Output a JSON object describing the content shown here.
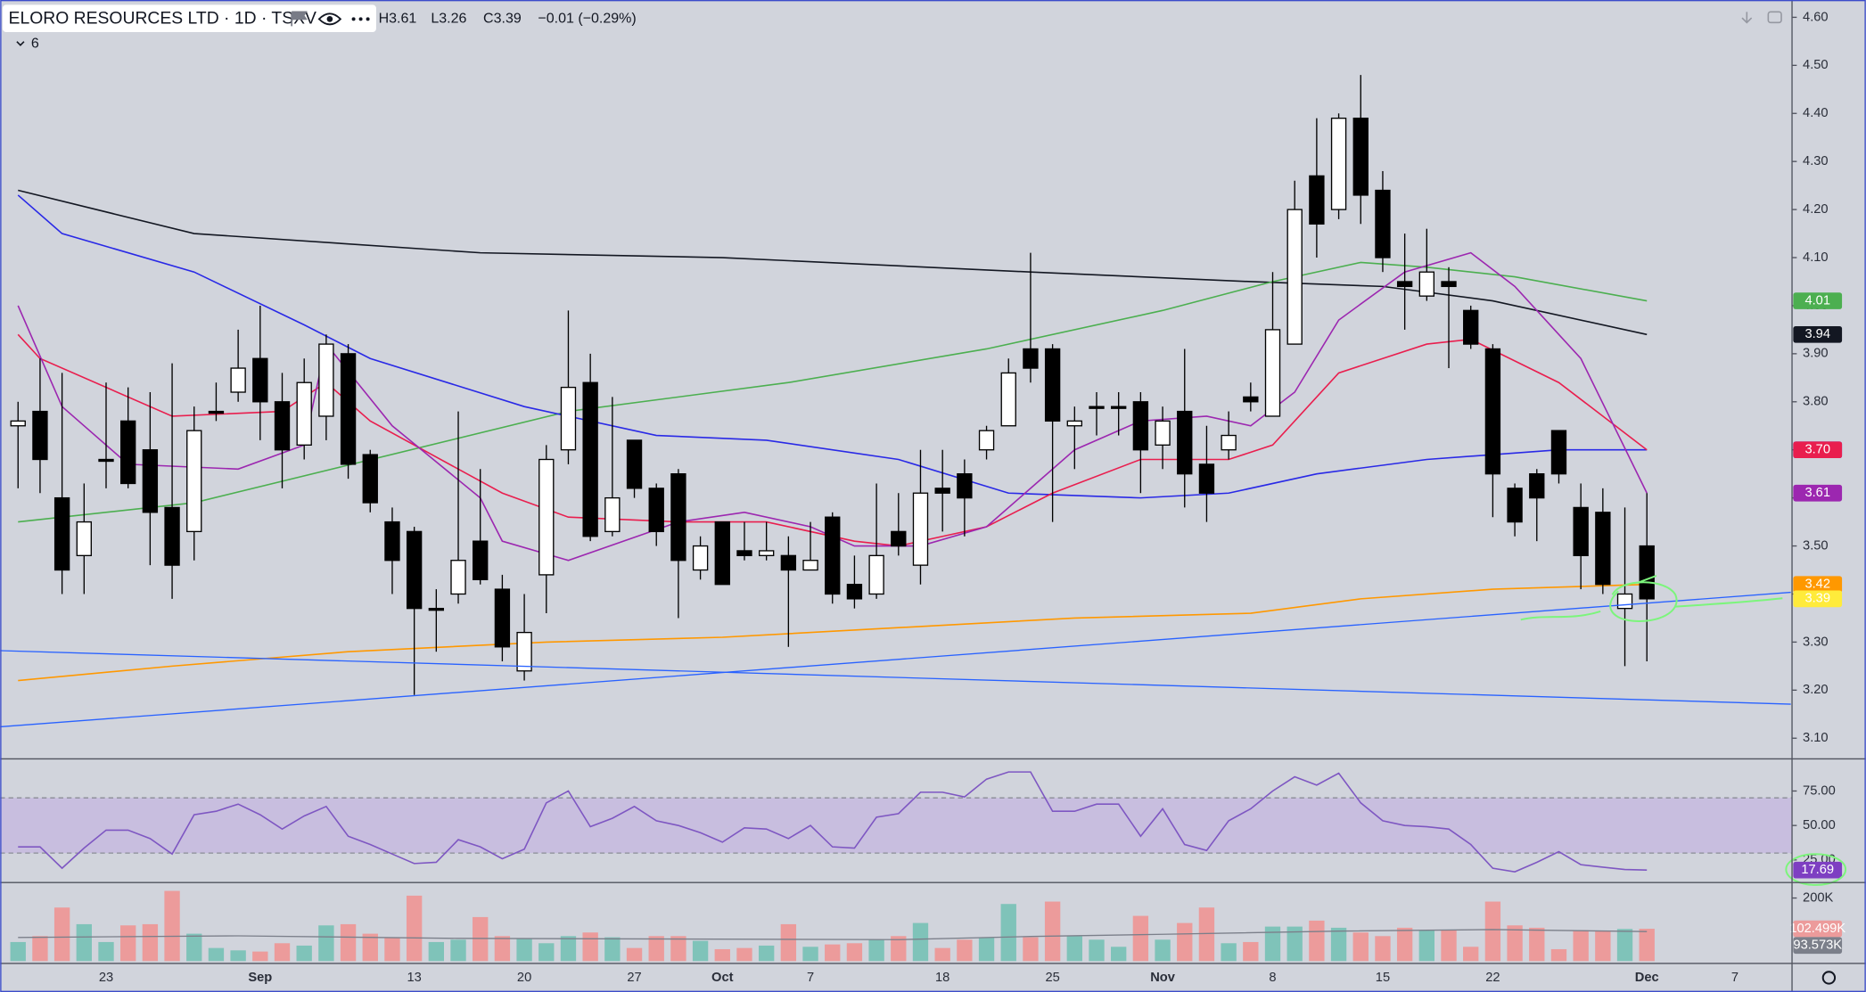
{
  "chart_data": {
    "type": "candlestick",
    "title": "ELORO RESOURCES LTD · 1D · TSXV",
    "header_high": "H3.61",
    "header_low": "L3.26",
    "header_close": "C3.39",
    "header_change": "−0.01 (−0.29%)",
    "indicator_count": 6,
    "categories": [
      null,
      null,
      null,
      null,
      "23",
      null,
      null,
      null,
      null,
      null,
      null,
      "Sep",
      null,
      null,
      null,
      null,
      null,
      null,
      "13",
      null,
      null,
      null,
      null,
      "20",
      null,
      null,
      null,
      null,
      "27",
      null,
      null,
      null,
      "Oct",
      null,
      null,
      null,
      "7",
      null,
      null,
      null,
      null,
      null,
      "18",
      null,
      null,
      null,
      null,
      "25",
      null,
      null,
      null,
      null,
      "Nov",
      null,
      null,
      null,
      null,
      "8",
      null,
      null,
      null,
      null,
      "15",
      null,
      null,
      null,
      null,
      "22",
      null,
      null,
      null,
      null,
      null,
      null,
      "Dec",
      null,
      null,
      null,
      "7"
    ],
    "open": [
      3.75,
      3.78,
      3.6,
      3.48,
      3.68,
      3.76,
      3.7,
      3.58,
      3.53,
      3.78,
      3.82,
      3.89,
      3.8,
      3.71,
      3.77,
      3.9,
      3.69,
      3.55,
      3.53,
      3.37,
      3.4,
      3.51,
      3.41,
      3.24,
      3.44,
      3.7,
      3.84,
      3.53,
      3.72,
      3.62,
      3.65,
      3.45,
      3.55,
      3.49,
      3.48,
      3.48,
      3.45,
      3.56,
      3.42,
      3.4,
      3.53,
      3.46,
      3.62,
      3.65,
      3.7,
      3.75,
      3.91,
      3.91,
      3.75,
      3.79,
      3.79,
      3.8,
      3.71,
      3.78,
      3.67,
      3.7,
      3.81,
      3.77,
      3.92,
      4.27,
      4.2,
      4.39,
      4.24,
      4.05,
      4.02,
      4.05,
      3.99,
      3.91,
      3.62,
      3.65,
      3.74,
      3.58,
      3.57,
      3.37,
      3.5,
      null,
      null,
      null,
      null
    ],
    "high": [
      3.8,
      3.89,
      3.86,
      3.63,
      3.84,
      3.83,
      3.82,
      3.88,
      3.79,
      3.84,
      3.95,
      4.0,
      3.86,
      3.89,
      3.94,
      3.92,
      3.7,
      3.58,
      3.54,
      3.41,
      3.78,
      3.66,
      3.44,
      3.4,
      3.71,
      3.99,
      3.9,
      3.81,
      3.72,
      3.63,
      3.66,
      3.52,
      3.55,
      3.55,
      3.55,
      3.52,
      3.55,
      3.57,
      3.48,
      3.63,
      3.61,
      3.7,
      3.7,
      3.68,
      3.75,
      3.89,
      4.11,
      3.92,
      3.79,
      3.82,
      3.82,
      3.82,
      3.79,
      3.91,
      3.75,
      3.78,
      3.84,
      4.07,
      4.26,
      4.39,
      4.4,
      4.48,
      4.28,
      4.15,
      4.16,
      4.08,
      4.0,
      3.92,
      3.63,
      3.66,
      3.74,
      3.63,
      3.62,
      3.58,
      3.61,
      null,
      null,
      null,
      null
    ],
    "low": [
      3.62,
      3.61,
      3.4,
      3.4,
      3.62,
      3.62,
      3.46,
      3.39,
      3.47,
      3.76,
      3.8,
      3.72,
      3.62,
      3.68,
      3.72,
      3.64,
      3.57,
      3.4,
      3.19,
      3.28,
      3.38,
      3.42,
      3.26,
      3.22,
      3.36,
      3.67,
      3.51,
      3.52,
      3.6,
      3.5,
      3.35,
      3.43,
      3.42,
      3.47,
      3.47,
      3.29,
      3.45,
      3.38,
      3.37,
      3.39,
      3.48,
      3.42,
      3.53,
      3.52,
      3.68,
      3.75,
      3.84,
      3.55,
      3.66,
      3.73,
      3.73,
      3.61,
      3.66,
      3.58,
      3.55,
      3.68,
      3.78,
      3.77,
      3.92,
      4.1,
      4.18,
      4.17,
      4.07,
      3.95,
      4.01,
      3.87,
      3.91,
      3.56,
      3.52,
      3.51,
      3.63,
      3.41,
      3.4,
      3.25,
      3.26,
      null,
      null,
      null,
      null
    ],
    "close": [
      3.76,
      3.68,
      3.45,
      3.55,
      3.68,
      3.63,
      3.57,
      3.46,
      3.74,
      3.78,
      3.87,
      3.8,
      3.7,
      3.84,
      3.92,
      3.67,
      3.59,
      3.47,
      3.37,
      3.37,
      3.47,
      3.43,
      3.29,
      3.32,
      3.68,
      3.83,
      3.52,
      3.6,
      3.62,
      3.53,
      3.47,
      3.5,
      3.42,
      3.48,
      3.49,
      3.45,
      3.47,
      3.4,
      3.39,
      3.48,
      3.5,
      3.61,
      3.61,
      3.6,
      3.74,
      3.86,
      3.87,
      3.76,
      3.76,
      3.79,
      3.79,
      3.7,
      3.76,
      3.65,
      3.61,
      3.73,
      3.8,
      3.95,
      4.2,
      4.17,
      4.39,
      4.23,
      4.1,
      4.04,
      4.07,
      4.04,
      3.92,
      3.65,
      3.55,
      3.6,
      3.65,
      3.48,
      3.42,
      3.4,
      3.39,
      null,
      null,
      null,
      null
    ],
    "up_color": "#ffffff",
    "down_color": "#000000",
    "wick_color": "#000000",
    "price_badge_color": "#ffeb3b",
    "ylim": [
      3.057,
      4.636
    ],
    "yticks": [
      {
        "value": 4.6,
        "label": "4.60"
      },
      {
        "value": 4.5,
        "label": "4.50"
      },
      {
        "value": 4.4,
        "label": "4.40"
      },
      {
        "value": 4.3,
        "label": "4.30"
      },
      {
        "value": 4.2,
        "label": "4.20"
      },
      {
        "value": 4.1,
        "label": "4.10"
      },
      {
        "value": 4.0,
        "label": "4.00"
      },
      {
        "value": 3.9,
        "label": "3.90"
      },
      {
        "value": 3.8,
        "label": "3.80"
      },
      {
        "value": 3.7,
        "label": "3.70"
      },
      {
        "value": 3.6,
        "label": "3.60"
      },
      {
        "value": 3.5,
        "label": "3.50"
      },
      {
        "value": 3.4,
        "label": "3.40"
      },
      {
        "value": 3.3,
        "label": "3.30"
      },
      {
        "value": 3.2,
        "label": "3.20"
      },
      {
        "value": 3.1,
        "label": "3.10"
      }
    ],
    "overlays": [
      {
        "color": "#131722",
        "badge_label": "3.94",
        "x": [
          0,
          8,
          21,
          32,
          46,
          56,
          62,
          67,
          74
        ],
        "values": [
          4.24,
          4.15,
          4.11,
          4.1,
          4.07,
          4.05,
          4.04,
          4.01,
          3.94
        ]
      },
      {
        "color": "#4caf50",
        "badge_label": "4.01",
        "x": [
          0,
          8,
          25,
          35,
          44,
          52,
          57,
          61,
          64,
          68,
          74
        ],
        "values": [
          3.55,
          3.59,
          3.78,
          3.84,
          3.91,
          3.99,
          4.05,
          4.09,
          4.08,
          4.06,
          4.01
        ]
      },
      {
        "color": "#2929e6",
        "badge_label": "3.70",
        "x": [
          0,
          2,
          8,
          13,
          16,
          23,
          29,
          34,
          40,
          45,
          51,
          55,
          59,
          64,
          70,
          74
        ],
        "values": [
          4.23,
          4.15,
          4.07,
          3.96,
          3.89,
          3.79,
          3.73,
          3.72,
          3.68,
          3.61,
          3.6,
          3.61,
          3.65,
          3.68,
          3.7,
          3.7
        ]
      },
      {
        "color": "#e91e4e",
        "badge_label": "3.70",
        "x": [
          0,
          1,
          7,
          12,
          14,
          16,
          22,
          25,
          30,
          34,
          38,
          40,
          44,
          47,
          51,
          55,
          57,
          60,
          64,
          66,
          70,
          74
        ],
        "values": [
          3.94,
          3.89,
          3.77,
          3.78,
          3.84,
          3.76,
          3.61,
          3.56,
          3.55,
          3.55,
          3.51,
          3.5,
          3.54,
          3.61,
          3.68,
          3.68,
          3.71,
          3.86,
          3.92,
          3.93,
          3.84,
          3.7
        ]
      },
      {
        "color": "#9c27b0",
        "badge_label": "3.61",
        "x": [
          0,
          2,
          5,
          10,
          13,
          14,
          17,
          21,
          22,
          25,
          30,
          33,
          36,
          38,
          41,
          44,
          46,
          48,
          51,
          54,
          56,
          58,
          60,
          63,
          66,
          68,
          71,
          74
        ],
        "values": [
          4.0,
          3.79,
          3.67,
          3.66,
          3.71,
          3.92,
          3.75,
          3.6,
          3.51,
          3.47,
          3.55,
          3.57,
          3.54,
          3.5,
          3.5,
          3.54,
          3.62,
          3.7,
          3.76,
          3.77,
          3.75,
          3.82,
          3.97,
          4.07,
          4.11,
          4.04,
          3.89,
          3.61
        ]
      },
      {
        "color": "#ff9800",
        "badge_label": "3.42",
        "x": [
          0,
          7,
          15,
          24,
          32,
          40,
          48,
          56,
          61,
          67,
          74
        ],
        "values": [
          3.22,
          3.25,
          3.28,
          3.3,
          3.31,
          3.33,
          3.35,
          3.36,
          3.39,
          3.41,
          3.42
        ]
      }
    ],
    "rsi": {
      "color": "#7e57c2",
      "band_color": "#c5b8e0",
      "badge_color": "#7e3fc2",
      "ylim": [
        8.6,
        98.3
      ],
      "band": [
        30,
        70
      ],
      "yticks": [
        {
          "value": 75,
          "label": "75.00"
        },
        {
          "value": 50,
          "label": "50.00"
        },
        {
          "value": 25,
          "label": "25.00"
        }
      ],
      "values": [
        34.5,
        34.5,
        19.0,
        33.6,
        46.6,
        46.6,
        40.5,
        29.3,
        57.8,
        60.3,
        65.5,
        57.8,
        47.4,
        56.9,
        63.8,
        42.2,
        36.2,
        29.3,
        22.4,
        23.3,
        39.7,
        34.5,
        25.9,
        32.8,
        66.4,
        75.0,
        49.1,
        55.2,
        63.8,
        53.4,
        50.0,
        44.8,
        37.9,
        48.3,
        47.4,
        40.5,
        50.0,
        34.5,
        33.6,
        56.0,
        58.6,
        74.1,
        74.1,
        70.7,
        83.6,
        88.8,
        88.8,
        60.3,
        60.3,
        65.5,
        65.5,
        42.2,
        62.1,
        36.2,
        31.9,
        53.4,
        62.1,
        75.0,
        85.3,
        79.3,
        87.9,
        66.4,
        53.4,
        50.0,
        49.1,
        47.4,
        36.2,
        19.0,
        16.4,
        23.3,
        31.0,
        21.6,
        19.8,
        18.1,
        17.69,
        null,
        null,
        null,
        null
      ]
    },
    "volume": {
      "up_color": "#7fc3b9",
      "down_color": "#ec9b9b",
      "badge_label": "102.499K",
      "ylim": [
        0,
        249000
      ],
      "yticks": [
        {
          "value": 200000,
          "label": "200K"
        }
      ],
      "values": [
        60400,
        79200,
        169800,
        117000,
        60400,
        113200,
        117000,
        222600,
        86800,
        41500,
        34000,
        30200,
        56600,
        49100,
        113200,
        117000,
        86800,
        75500,
        207500,
        60400,
        67900,
        139600,
        79200,
        71700,
        56600,
        79200,
        90600,
        75500,
        41500,
        79200,
        79200,
        64200,
        37700,
        41500,
        49100,
        117000,
        45300,
        52800,
        56600,
        67900,
        79200,
        120800,
        41500,
        67900,
        75500,
        181100,
        75500,
        188700,
        79200,
        67900,
        45300,
        143400,
        67900,
        120800,
        169800,
        56600,
        60400,
        109400,
        109400,
        128300,
        105700,
        90600,
        79200,
        105700,
        98100,
        98100,
        45300,
        188700,
        113200,
        105700,
        37700,
        98100,
        94300,
        101900,
        102499,
        null,
        null,
        null,
        null
      ],
      "ma": {
        "color": "#7b7f8a",
        "badge_label": "93.573K",
        "x": [
          0,
          10,
          20,
          30,
          40,
          46,
          52,
          60,
          67,
          74
        ],
        "values": [
          75000,
          80000,
          72000,
          70000,
          68000,
          78000,
          85000,
          95000,
          100000,
          93573
        ]
      }
    }
  }
}
